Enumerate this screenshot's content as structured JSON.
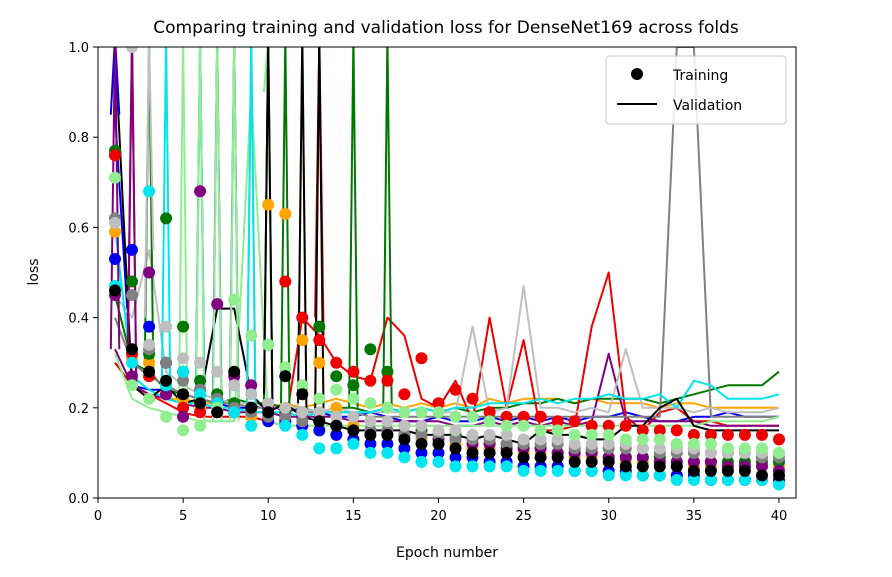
{
  "chart_data": {
    "type": "line",
    "title": "Comparing training and validation loss for DenseNet169 across folds",
    "xlabel": "Epoch number",
    "ylabel": "loss",
    "xlim": [
      0,
      41
    ],
    "ylim": [
      0.0,
      1.0
    ],
    "xticks": [
      0,
      5,
      10,
      15,
      20,
      25,
      30,
      35,
      40
    ],
    "yticks": [
      0.0,
      0.2,
      0.4,
      0.6,
      0.8,
      1.0
    ],
    "grid": false,
    "legend": {
      "placement": "top-right",
      "entries": [
        {
          "label": "Training",
          "marker": "dot"
        },
        {
          "label": "Validation",
          "marker": "line"
        }
      ]
    },
    "series": [
      {
        "color": "#0000ee",
        "training": [
          0.53,
          0.55,
          0.38,
          0.3,
          0.28,
          0.24,
          0.21,
          0.19,
          0.18,
          0.17,
          0.17,
          0.16,
          0.15,
          0.14,
          0.13,
          0.12,
          0.12,
          0.11,
          0.1,
          0.1,
          0.09,
          0.09,
          0.08,
          0.08,
          0.07,
          0.07,
          0.07,
          0.06,
          0.06,
          0.06,
          0.06,
          0.05,
          0.05,
          0.05,
          0.05,
          0.04,
          0.04,
          0.04,
          0.04,
          0.04
        ],
        "validation": [
          0.85,
          0.25,
          0.24,
          0.24,
          0.23,
          0.22,
          0.21,
          0.2,
          0.2,
          0.21,
          0.19,
          0.2,
          0.19,
          0.18,
          0.18,
          0.19,
          0.18,
          0.17,
          0.17,
          0.18,
          0.17,
          0.17,
          0.18,
          0.17,
          0.18,
          0.17,
          0.18,
          0.17,
          0.18,
          0.18,
          0.19,
          0.18,
          0.17,
          0.17,
          0.18,
          0.18,
          0.19,
          0.18,
          0.18,
          0.18
        ]
      },
      {
        "color": "#ffa500",
        "training": [
          0.59,
          0.31,
          0.3,
          0.25,
          0.22,
          0.2,
          0.19,
          0.19,
          0.18,
          0.65,
          0.63,
          0.35,
          0.3,
          0.2,
          0.16,
          0.15,
          0.14,
          0.14,
          0.13,
          0.12,
          0.12,
          0.11,
          0.11,
          0.1,
          0.1,
          0.1,
          0.09,
          0.09,
          0.09,
          0.08,
          0.08,
          0.08,
          0.08,
          0.07,
          0.07,
          0.07,
          0.07,
          0.07,
          0.07,
          0.07
        ],
        "validation": [
          0.3,
          0.25,
          0.23,
          0.22,
          0.22,
          0.21,
          0.21,
          0.22,
          0.21,
          0.2,
          0.21,
          0.2,
          0.21,
          0.22,
          0.21,
          0.2,
          0.21,
          0.2,
          0.21,
          0.2,
          0.21,
          0.2,
          0.22,
          0.21,
          0.22,
          0.22,
          0.22,
          0.21,
          0.22,
          0.21,
          0.21,
          0.21,
          0.2,
          0.21,
          0.21,
          0.2,
          0.2,
          0.2,
          0.2,
          0.2
        ]
      },
      {
        "color": "#007700",
        "training": [
          0.77,
          0.48,
          0.32,
          0.62,
          0.38,
          0.26,
          0.23,
          0.21,
          0.2,
          0.2,
          0.19,
          0.19,
          0.38,
          0.27,
          0.25,
          0.33,
          0.28,
          0.16,
          0.15,
          0.14,
          0.14,
          0.13,
          0.12,
          0.12,
          0.11,
          0.11,
          0.1,
          0.1,
          0.1,
          0.09,
          0.09,
          0.09,
          0.09,
          0.08,
          0.08,
          0.08,
          0.08,
          0.08,
          0.08,
          0.08
        ],
        "validation": [
          0.45,
          0.3,
          0.28,
          0.24,
          0.23,
          0.22,
          0.21,
          0.22,
          0.21,
          0.21,
          0.2,
          0.2,
          0.19,
          0.2,
          0.2,
          0.19,
          0.2,
          0.19,
          0.2,
          0.19,
          0.2,
          0.19,
          0.2,
          0.2,
          0.21,
          0.21,
          0.22,
          0.21,
          0.22,
          0.22,
          0.22,
          0.22,
          0.21,
          0.22,
          0.23,
          0.24,
          0.25,
          0.25,
          0.25,
          0.28
        ]
      },
      {
        "color": "#ee0000",
        "training": [
          0.76,
          0.32,
          0.27,
          0.23,
          0.2,
          0.19,
          0.19,
          0.19,
          0.2,
          0.2,
          0.48,
          0.4,
          0.35,
          0.3,
          0.28,
          0.26,
          0.26,
          0.23,
          0.31,
          0.21,
          0.24,
          0.22,
          0.19,
          0.18,
          0.18,
          0.18,
          0.17,
          0.17,
          0.16,
          0.16,
          0.16,
          0.15,
          0.15,
          0.15,
          0.14,
          0.14,
          0.14,
          0.14,
          0.14,
          0.13
        ],
        "validation": [
          0.3,
          0.25,
          0.23,
          0.21,
          0.19,
          0.18,
          0.18,
          0.18,
          0.18,
          0.17,
          0.16,
          0.4,
          0.36,
          0.3,
          0.27,
          0.26,
          0.4,
          0.36,
          0.22,
          0.2,
          0.26,
          0.17,
          0.4,
          0.2,
          0.35,
          0.15,
          0.15,
          0.16,
          0.38,
          0.5,
          0.18,
          0.15,
          0.19,
          0.2,
          0.17,
          0.17,
          0.16,
          0.16,
          0.16,
          0.16
        ]
      },
      {
        "color": "#800080",
        "training": [
          0.45,
          0.27,
          0.5,
          0.23,
          0.18,
          0.68,
          0.43,
          0.27,
          0.25,
          0.2,
          0.18,
          0.18,
          0.17,
          0.16,
          0.15,
          0.15,
          0.14,
          0.14,
          0.14,
          0.13,
          0.13,
          0.12,
          0.12,
          0.11,
          0.11,
          0.11,
          0.1,
          0.1,
          0.1,
          0.09,
          0.09,
          0.09,
          0.08,
          0.08,
          0.08,
          0.08,
          0.07,
          0.07,
          0.07,
          0.06
        ],
        "validation": [
          0.33,
          0.25,
          0.23,
          0.22,
          0.21,
          0.2,
          0.2,
          0.19,
          0.19,
          0.19,
          0.18,
          0.18,
          0.18,
          0.18,
          0.17,
          0.17,
          0.17,
          0.17,
          0.17,
          0.17,
          0.16,
          0.16,
          0.17,
          0.16,
          0.17,
          0.16,
          0.17,
          0.16,
          0.17,
          0.32,
          0.17,
          0.17,
          0.17,
          0.17,
          0.17,
          0.16,
          0.16,
          0.16,
          0.16,
          0.16
        ]
      },
      {
        "color": "#808080",
        "training": [
          0.62,
          0.45,
          0.33,
          0.3,
          0.26,
          0.24,
          0.22,
          0.2,
          0.19,
          0.18,
          0.18,
          0.17,
          0.17,
          0.16,
          0.15,
          0.15,
          0.15,
          0.14,
          0.14,
          0.14,
          0.13,
          0.13,
          0.13,
          0.12,
          0.12,
          0.12,
          0.12,
          0.11,
          0.11,
          0.11,
          0.11,
          0.11,
          0.1,
          0.1,
          0.1,
          0.1,
          0.1,
          0.1,
          0.09,
          0.09
        ],
        "validation": [
          0.4,
          0.3,
          0.27,
          0.25,
          0.23,
          0.22,
          0.21,
          0.21,
          0.2,
          0.2,
          0.2,
          0.19,
          0.19,
          0.19,
          0.19,
          0.18,
          0.18,
          0.18,
          0.18,
          0.18,
          0.18,
          0.18,
          0.18,
          0.18,
          0.18,
          0.18,
          0.18,
          0.18,
          0.18,
          0.18,
          0.18,
          0.18,
          0.18,
          1.0,
          1.0,
          0.18,
          0.18,
          0.18,
          0.18,
          0.18
        ]
      },
      {
        "color": "#bfbfbf",
        "training": [
          0.61,
          1.0,
          0.34,
          0.38,
          0.31,
          0.3,
          0.28,
          0.25,
          0.23,
          0.21,
          0.2,
          0.19,
          0.19,
          0.18,
          0.18,
          0.17,
          0.17,
          0.16,
          0.16,
          0.15,
          0.15,
          0.14,
          0.14,
          0.14,
          0.13,
          0.13,
          0.13,
          0.12,
          0.12,
          0.12,
          0.12,
          0.11,
          0.11,
          0.11,
          0.11,
          0.1,
          0.1,
          0.1,
          0.1,
          0.1
        ],
        "validation": [
          0.45,
          0.4,
          0.55,
          0.28,
          0.25,
          0.23,
          0.22,
          0.21,
          0.21,
          0.2,
          0.2,
          0.2,
          0.19,
          0.2,
          0.19,
          0.19,
          0.19,
          0.19,
          0.2,
          0.19,
          0.19,
          0.38,
          0.19,
          0.2,
          0.47,
          0.2,
          0.2,
          0.19,
          0.2,
          0.19,
          0.33,
          0.2,
          0.2,
          0.2,
          0.19,
          0.2,
          0.19,
          0.19,
          0.19,
          0.2
        ]
      },
      {
        "color": "#00e5ee",
        "training": [
          0.47,
          0.3,
          0.68,
          0.25,
          0.28,
          0.23,
          0.21,
          0.19,
          0.16,
          0.34,
          0.16,
          0.14,
          0.11,
          0.11,
          0.12,
          0.1,
          0.1,
          0.09,
          0.08,
          0.08,
          0.07,
          0.07,
          0.07,
          0.07,
          0.06,
          0.06,
          0.06,
          0.06,
          0.06,
          0.05,
          0.05,
          0.05,
          0.05,
          0.04,
          0.04,
          0.04,
          0.04,
          0.04,
          0.04,
          0.03
        ],
        "validation": [
          0.6,
          0.27,
          0.24,
          0.22,
          0.21,
          0.21,
          0.2,
          0.2,
          0.19,
          0.19,
          0.19,
          0.18,
          0.19,
          0.19,
          0.19,
          0.19,
          0.2,
          0.19,
          0.2,
          0.19,
          0.2,
          0.2,
          0.21,
          0.21,
          0.21,
          0.22,
          0.21,
          0.22,
          0.22,
          0.23,
          0.22,
          0.22,
          0.23,
          0.2,
          0.26,
          0.25,
          0.22,
          0.22,
          0.22,
          0.23
        ]
      },
      {
        "color": "#90ee90",
        "training": [
          0.71,
          0.25,
          0.22,
          0.18,
          0.15,
          0.16,
          0.2,
          0.44,
          0.36,
          0.34,
          0.29,
          0.25,
          0.22,
          0.24,
          0.22,
          0.21,
          0.2,
          0.19,
          0.19,
          0.19,
          0.18,
          0.18,
          0.17,
          0.16,
          0.16,
          0.15,
          0.15,
          0.14,
          0.14,
          0.14,
          0.13,
          0.13,
          0.13,
          0.12,
          0.12,
          0.12,
          0.11,
          0.11,
          0.11,
          0.1
        ],
        "validation": [
          0.32,
          0.22,
          0.2,
          0.19,
          0.18,
          0.17,
          0.17,
          0.17,
          0.9,
          0.17,
          0.16,
          0.16,
          0.16,
          0.16,
          0.16,
          0.16,
          0.16,
          0.16,
          0.16,
          0.16,
          0.16,
          0.16,
          0.16,
          0.16,
          0.16,
          0.16,
          0.16,
          0.16,
          0.16,
          0.16,
          0.16,
          0.16,
          0.16,
          0.16,
          0.16,
          0.17,
          0.17,
          0.17,
          0.17,
          0.18
        ]
      },
      {
        "color": "#000000",
        "training": [
          0.46,
          0.33,
          0.28,
          0.26,
          0.23,
          0.21,
          0.19,
          0.28,
          0.2,
          0.19,
          0.27,
          0.23,
          0.17,
          0.16,
          0.15,
          0.14,
          0.14,
          0.13,
          0.12,
          0.12,
          0.11,
          0.1,
          0.1,
          0.1,
          0.09,
          0.09,
          0.09,
          0.08,
          0.08,
          0.08,
          0.07,
          0.07,
          0.07,
          0.07,
          0.06,
          0.06,
          0.06,
          0.06,
          0.05,
          0.05
        ],
        "validation": [
          1.0,
          0.25,
          0.22,
          0.25,
          0.21,
          0.22,
          0.42,
          0.42,
          0.23,
          0.19,
          0.21,
          0.18,
          0.17,
          0.16,
          0.15,
          0.15,
          0.15,
          0.15,
          0.14,
          0.14,
          0.14,
          0.13,
          0.14,
          0.13,
          0.12,
          0.15,
          0.14,
          0.14,
          0.13,
          0.13,
          0.16,
          0.16,
          0.2,
          0.22,
          0.16,
          0.15,
          0.15,
          0.15,
          0.15,
          0.15
        ]
      }
    ],
    "spikes": [
      {
        "series": 0,
        "epochs": [
          1,
          6,
          7,
          8
        ]
      },
      {
        "series": 1,
        "epochs": [
          9,
          10,
          12,
          13
        ]
      },
      {
        "series": 2,
        "epochs": [
          3,
          10,
          11,
          15,
          17
        ]
      },
      {
        "series": 3,
        "epochs": [
          2,
          13
        ]
      },
      {
        "series": 4,
        "epochs": [
          1,
          2
        ]
      },
      {
        "series": 6,
        "epochs": [
          3,
          9,
          12
        ]
      },
      {
        "series": 7,
        "epochs": [
          4,
          6,
          9
        ]
      },
      {
        "series": 8,
        "epochs": [
          5,
          6,
          7,
          8,
          10
        ]
      },
      {
        "series": 9,
        "epochs": [
          1,
          10,
          12,
          13
        ]
      }
    ]
  }
}
